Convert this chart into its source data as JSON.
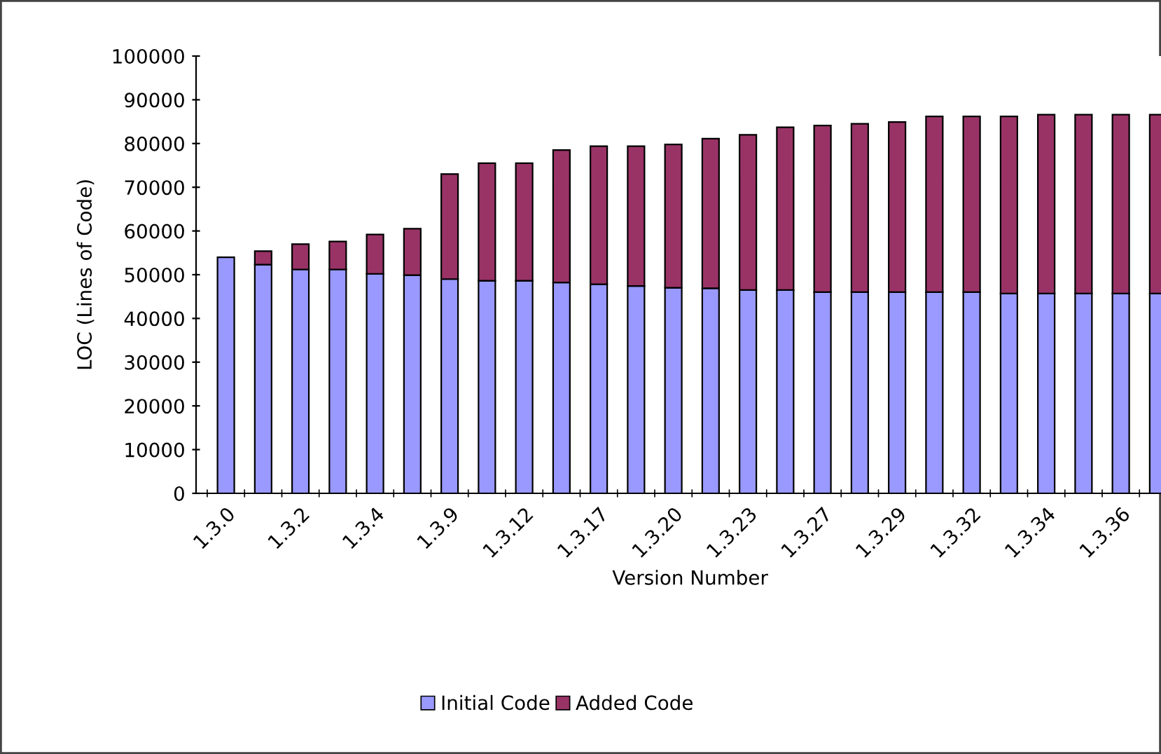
{
  "chart_data": {
    "type": "bar",
    "stacked": true,
    "xlabel": "Version Number",
    "ylabel": "LOC (Lines of Code)",
    "categories": [
      "1.3.0",
      null,
      "1.3.2",
      null,
      "1.3.4",
      null,
      "1.3.9",
      null,
      "1.3.12",
      null,
      "1.3.17",
      null,
      "1.3.20",
      null,
      "1.3.23",
      null,
      "1.3.27",
      null,
      "1.3.29",
      null,
      "1.3.32",
      null,
      "1.3.34",
      null,
      "1.3.36",
      null
    ],
    "series": [
      {
        "name": "Initial Code",
        "color": "#9999ff",
        "values": [
          54000,
          52300,
          51200,
          51200,
          50200,
          49900,
          49000,
          48600,
          48600,
          48200,
          47800,
          47400,
          47000,
          46900,
          46500,
          46500,
          46000,
          46000,
          46000,
          46000,
          46000,
          45700,
          45700,
          45700,
          45700,
          45700
        ]
      },
      {
        "name": "Added Code",
        "color": "#993366",
        "values": [
          0,
          3100,
          5800,
          6400,
          9000,
          10600,
          24000,
          26900,
          26900,
          30300,
          31600,
          32000,
          32800,
          34200,
          35500,
          37200,
          38100,
          38500,
          38900,
          40200,
          40200,
          40500,
          40900,
          40900,
          40900,
          40900
        ]
      }
    ],
    "ylim": [
      0,
      100000
    ],
    "yticks": [
      0,
      10000,
      20000,
      30000,
      40000,
      50000,
      60000,
      70000,
      80000,
      90000,
      100000
    ],
    "grid": false,
    "legend": "bottom"
  }
}
